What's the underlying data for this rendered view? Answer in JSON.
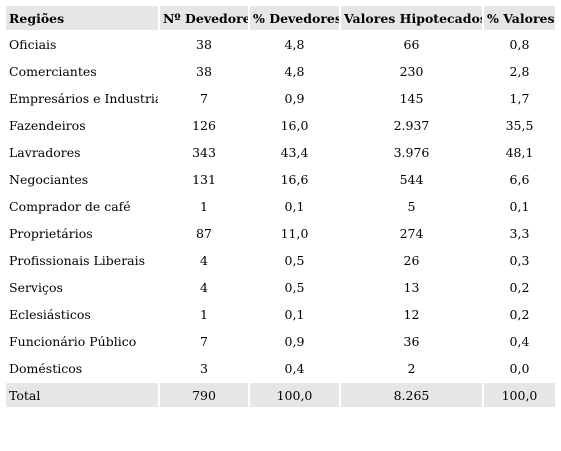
{
  "table": {
    "headers": [
      "Regiões",
      "Nº Devedores",
      "% Devedores",
      "Valores Hipotecados *",
      "% Valores"
    ],
    "rows": [
      [
        "Oficiais",
        "38",
        "4,8",
        "66",
        "0,8"
      ],
      [
        "Comerciantes",
        "38",
        "4,8",
        "230",
        "2,8"
      ],
      [
        "Empresários  e Industriais",
        "7",
        "0,9",
        "145",
        "1,7"
      ],
      [
        "Fazendeiros",
        "126",
        "16,0",
        "2.937",
        "35,5"
      ],
      [
        "Lavradores",
        "343",
        "43,4",
        "3.976",
        "48,1"
      ],
      [
        "Negociantes",
        "131",
        "16,6",
        "544",
        "6,6"
      ],
      [
        "Comprador de café",
        "1",
        "0,1",
        "5",
        "0,1"
      ],
      [
        "Proprietários",
        "87",
        "11,0",
        "274",
        "3,3"
      ],
      [
        "Profissionais Liberais",
        "4",
        "0,5",
        "26",
        "0,3"
      ],
      [
        "Serviços",
        "4",
        "0,5",
        "13",
        "0,2"
      ],
      [
        "Eclesiásticos",
        "1",
        "0,1",
        "12",
        "0,2"
      ],
      [
        "Funcionário Público",
        "7",
        "0,9",
        "36",
        "0,4"
      ],
      [
        "Domésticos",
        "3",
        "0,4",
        "2",
        "0,0"
      ]
    ],
    "total": [
      "Total",
      "790",
      "100,0",
      "8.265",
      "100,0"
    ]
  },
  "colors": {
    "header_bg": "#e6e6e6",
    "total_bg": "#e6e6e6"
  }
}
